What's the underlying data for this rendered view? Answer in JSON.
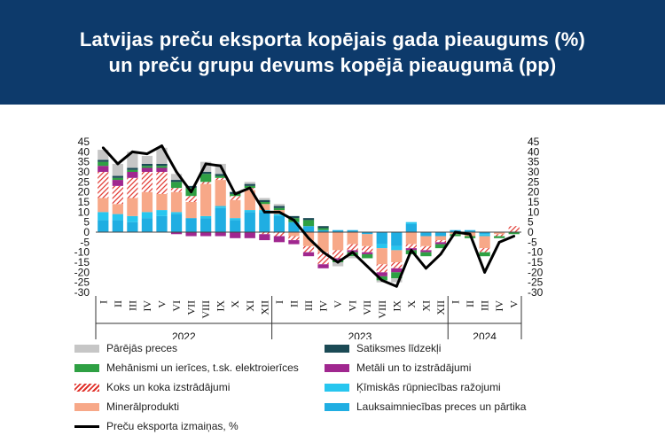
{
  "header": {
    "title_line1": "Latvijas preču eksporta kopējais gada pieaugums (%)",
    "title_line2": "un preču grupu devums kopējā pieaugumā (pp)"
  },
  "colors": {
    "header_bg": "#0d3a6b",
    "pareji": "#c6c6c6",
    "satiksme": "#1b4a55",
    "mehanismi": "#2ea043",
    "metali": "#a0278f",
    "koks": "#e0322b",
    "kimiskas": "#27c6ef",
    "mineral": "#f7a888",
    "lauks": "#20aee2",
    "line": "#000000"
  },
  "chart_data": {
    "type": "bar",
    "stacked": true,
    "title": "Latvijas preču eksporta kopējais gada pieaugums (%) un preču grupu devums kopējā pieaugumā (pp)",
    "ylim": [
      -30,
      45
    ],
    "yticks": [
      -30,
      -25,
      -20,
      -15,
      -10,
      -5,
      0,
      5,
      10,
      15,
      20,
      25,
      30,
      35,
      40,
      45
    ],
    "grid": false,
    "legend_position": "bottom",
    "categories": [
      "I",
      "II",
      "III",
      "IV",
      "V",
      "VI",
      "VII",
      "VIII",
      "IX",
      "X",
      "XI",
      "XII",
      "I",
      "II",
      "III",
      "IV",
      "V",
      "VI",
      "VII",
      "VIII",
      "IX",
      "X",
      "XI",
      "XII",
      "I",
      "II",
      "III",
      "IV",
      "V"
    ],
    "years": [
      {
        "label": "2022",
        "start": 0,
        "end": 11
      },
      {
        "label": "2023",
        "start": 12,
        "end": 23
      },
      {
        "label": "2024",
        "start": 24,
        "end": 28
      }
    ],
    "series": [
      {
        "name": "Lauksaimniecības preces un pārtika",
        "color": "#20aee2",
        "pattern": "solid",
        "values": [
          6,
          6,
          5,
          7,
          8,
          9,
          7,
          7,
          12,
          6,
          10,
          10,
          8,
          5,
          3,
          1,
          1,
          1,
          -1,
          -6,
          -7,
          4,
          -2,
          -2,
          1,
          1,
          -1,
          0,
          0
        ]
      },
      {
        "name": "Ķīmiskās rūpniecības ražojumi",
        "color": "#27c6ef",
        "pattern": "solid",
        "values": [
          4,
          3,
          3,
          3,
          3,
          1,
          0,
          1,
          1,
          1,
          1,
          1,
          1,
          0,
          0,
          0,
          0,
          0,
          0,
          -2,
          -2,
          1,
          0,
          0,
          0,
          0,
          -1,
          0,
          0
        ]
      },
      {
        "name": "Minerālprodukti",
        "color": "#f7a888",
        "pattern": "solid",
        "values": [
          7,
          5,
          9,
          10,
          8,
          10,
          8,
          16,
          13,
          9,
          10,
          3,
          2,
          -2,
          -7,
          -10,
          -9,
          -6,
          -6,
          -8,
          -6,
          -6,
          -5,
          -2,
          -1,
          -2,
          -6,
          -1,
          0
        ]
      },
      {
        "name": "Koks un koka izstrādājumi",
        "color": "#e0322b",
        "pattern": "hatch",
        "values": [
          13,
          9,
          10,
          10,
          11,
          2,
          3,
          1,
          1,
          2,
          1,
          -1,
          -2,
          -2,
          -3,
          -6,
          -4,
          -3,
          -3,
          -4,
          -3,
          -2,
          -2,
          -1,
          0,
          0,
          -2,
          -1,
          3
        ]
      },
      {
        "name": "Metāli un to izstrādājumi",
        "color": "#a0278f",
        "pattern": "solid",
        "values": [
          3,
          3,
          3,
          2,
          2,
          -1,
          -2,
          -2,
          -2,
          -3,
          -3,
          -3,
          -3,
          -2,
          -2,
          -2,
          -1,
          -1,
          -1,
          -2,
          -2,
          -1,
          -1,
          -1,
          0,
          0,
          0,
          0,
          0
        ]
      },
      {
        "name": "Mehānismi un ierīces, t.sk. elektroierīces",
        "color": "#2ea043",
        "pattern": "solid",
        "values": [
          2,
          1,
          1,
          1,
          1,
          3,
          4,
          4,
          1,
          1,
          1,
          1,
          1,
          2,
          3,
          1,
          -1,
          -2,
          -2,
          -2,
          -3,
          -2,
          -2,
          -2,
          -1,
          -1,
          -2,
          -1,
          -1
        ]
      },
      {
        "name": "Satiksmes līdzekļi",
        "color": "#1b4a55",
        "pattern": "solid",
        "values": [
          1,
          1,
          1,
          1,
          1,
          1,
          1,
          1,
          1,
          1,
          1,
          1,
          1,
          1,
          1,
          1,
          0,
          0,
          0,
          0,
          0,
          0,
          0,
          0,
          0,
          0,
          0,
          0,
          0
        ]
      },
      {
        "name": "Pārējās preces",
        "color": "#c6c6c6",
        "pattern": "solid",
        "values": [
          5,
          6,
          8,
          4,
          8,
          3,
          0,
          5,
          5,
          0,
          1,
          1,
          1,
          0,
          0,
          0,
          -2,
          -1,
          0,
          -1,
          -2,
          0,
          0,
          0,
          0,
          0,
          0,
          0,
          0
        ]
      }
    ],
    "line_series": {
      "name": "Preču eksporta izmaiņas, %",
      "color": "#000000",
      "values": [
        42,
        34,
        40,
        39,
        43,
        30,
        20,
        34,
        33,
        19,
        22,
        10,
        10,
        6,
        -3,
        -10,
        -15,
        -10,
        -17,
        -24,
        -27,
        -9,
        -18,
        -11,
        0,
        -1,
        -20,
        -5,
        -2
      ]
    }
  },
  "legend": [
    {
      "key": "pareji",
      "label": "Pārējās preces"
    },
    {
      "key": "satiksme",
      "label": "Satiksmes līdzekļi"
    },
    {
      "key": "mehanismi",
      "label": "Mehānismi un ierīces, t.sk. elektroierīces"
    },
    {
      "key": "metali",
      "label": "Metāli un to izstrādājumi"
    },
    {
      "key": "koks",
      "label": "Koks un koka izstrādājumi"
    },
    {
      "key": "kimiskas",
      "label": "Ķīmiskās rūpniecības ražojumi"
    },
    {
      "key": "mineral",
      "label": "Minerālprodukti"
    },
    {
      "key": "lauks",
      "label": "Lauksaimniecības preces un pārtika"
    },
    {
      "key": "line",
      "label": "Preču eksporta izmaiņas, %"
    }
  ]
}
